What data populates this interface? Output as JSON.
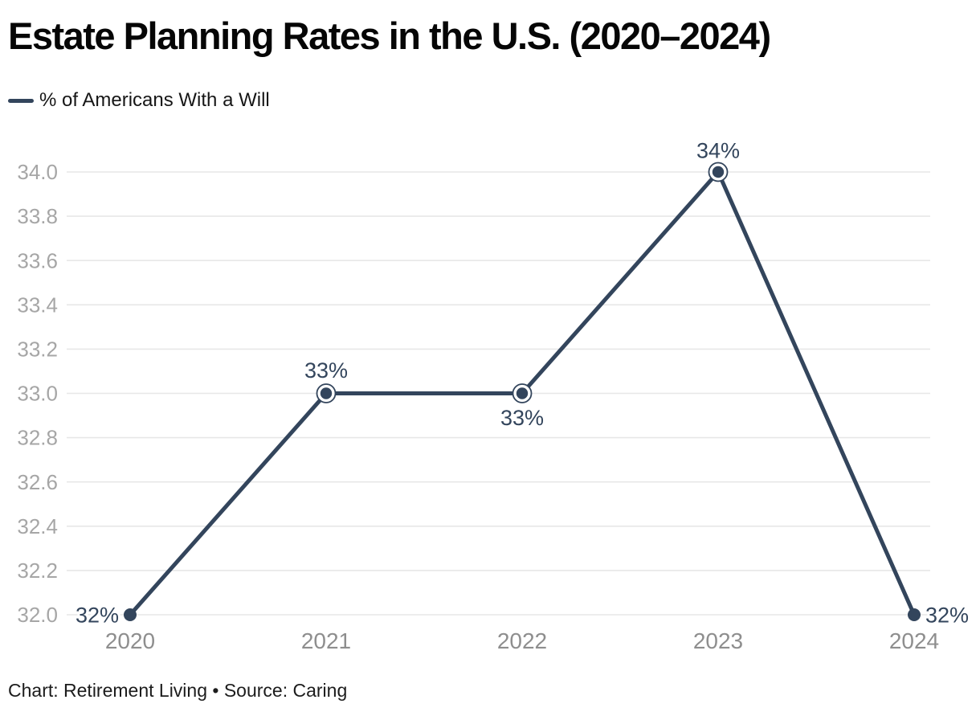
{
  "header": {
    "title": "Estate Planning Rates in the U.S. (2020–2024)"
  },
  "legend": {
    "label": "% of Americans With a Will"
  },
  "footer": {
    "text": "Chart: Retirement Living • Source: Caring"
  },
  "colors": {
    "series": "#33455c",
    "grid": "#e7e7e7",
    "y_tick_label": "#a6a6a6",
    "x_tick_label": "#8e8e8e",
    "title": "#060606",
    "footer": "#1c1c1c"
  },
  "chart_data": {
    "type": "line",
    "title": "Estate Planning Rates in the U.S. (2020–2024)",
    "categories": [
      "2020",
      "2021",
      "2022",
      "2023",
      "2024"
    ],
    "series": [
      {
        "name": "% of Americans With a Will",
        "values": [
          32,
          33,
          33,
          34,
          32
        ]
      }
    ],
    "point_labels": [
      "32%",
      "33%",
      "33%",
      "34%",
      "32%"
    ],
    "yticks": [
      "34.0",
      "33.8",
      "33.6",
      "33.4",
      "33.2",
      "33.0",
      "32.8",
      "32.6",
      "32.4",
      "32.2",
      "32.0"
    ],
    "ylim": [
      32.0,
      34.0
    ],
    "xlabel": "",
    "ylabel": "",
    "grid": "horizontal-only",
    "legend_position": "top-left",
    "source": "Chart: Retirement Living • Source: Caring"
  }
}
